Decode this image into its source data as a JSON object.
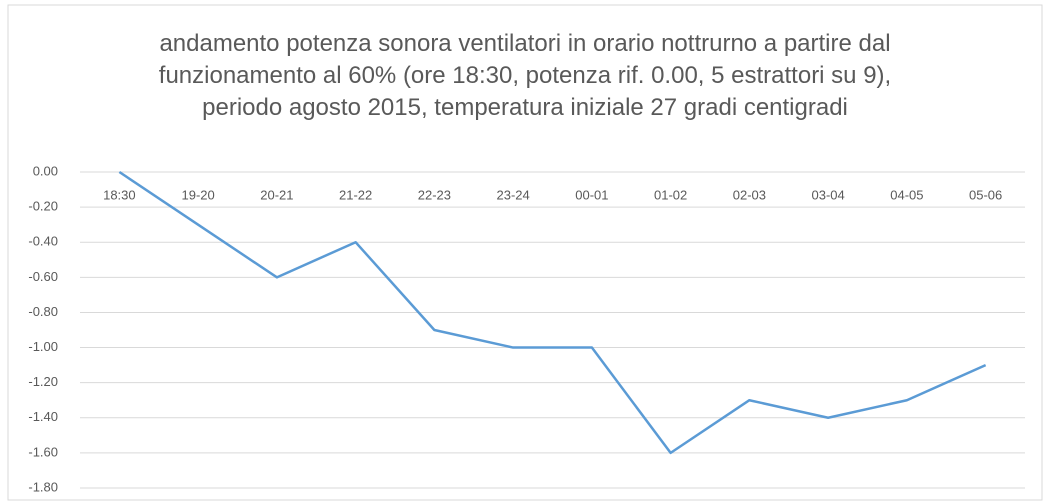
{
  "chart_data": {
    "type": "line",
    "title": "andamento potenza sonora ventilatori in orario nottrurno a partire dal funzionamento al 60% (ore 18:30, potenza rif. 0.00, 5 estrattori su 9), periodo agosto 2015, temperatura iniziale 27 gradi centigradi",
    "categories": [
      "18:30",
      "19-20",
      "20-21",
      "21-22",
      "22-23",
      "23-24",
      "00-01",
      "01-02",
      "02-03",
      "03-04",
      "04-05",
      "05-06"
    ],
    "series": [
      {
        "name": "potenza sonora",
        "color": "#5b9bd5",
        "values": [
          0,
          -0.3,
          -0.6,
          -0.4,
          -0.9,
          -1.0,
          -1.0,
          -1.6,
          -1.3,
          -1.4,
          -1.3,
          -1.1
        ]
      }
    ],
    "ylim": [
      -1.8,
      0
    ],
    "yticks": [
      {
        "value": 0,
        "label": "0.00"
      },
      {
        "value": -0.2,
        "label": "-0.20"
      },
      {
        "value": -0.4,
        "label": "-0.40"
      },
      {
        "value": -0.6,
        "label": "-0.60"
      },
      {
        "value": -0.8,
        "label": "-0.80"
      },
      {
        "value": -1.0,
        "label": "-1.00"
      },
      {
        "value": -1.2,
        "label": "-1.20"
      },
      {
        "value": -1.4,
        "label": "-1.40"
      },
      {
        "value": -1.6,
        "label": "-1.60"
      },
      {
        "value": -1.8,
        "label": "-1.80"
      }
    ],
    "grid": true
  }
}
